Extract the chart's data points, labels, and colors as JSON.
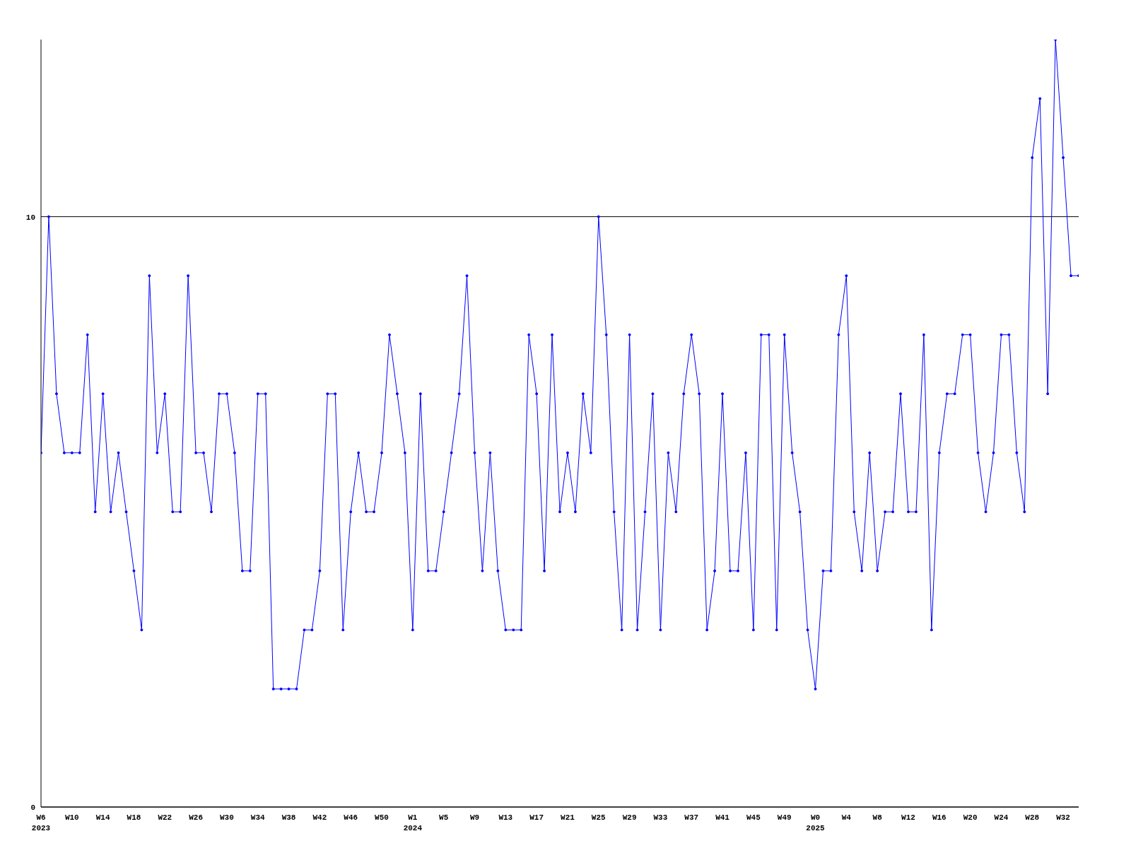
{
  "chart_data": {
    "type": "line",
    "categories": [
      "W6 2023",
      null,
      null,
      null,
      "W10",
      null,
      null,
      null,
      "W14",
      null,
      null,
      null,
      "W18",
      null,
      null,
      null,
      "W22",
      null,
      null,
      null,
      "W26",
      null,
      null,
      null,
      "W30",
      null,
      null,
      null,
      "W34",
      null,
      null,
      null,
      "W38",
      null,
      null,
      null,
      "W42",
      null,
      null,
      null,
      "W46",
      null,
      null,
      null,
      "W50",
      null,
      null,
      null,
      "W1 2024",
      null,
      null,
      null,
      "W5",
      null,
      null,
      null,
      "W9",
      null,
      null,
      null,
      "W13",
      null,
      null,
      null,
      "W17",
      null,
      null,
      null,
      "W21",
      null,
      null,
      null,
      "W25",
      null,
      null,
      null,
      "W29",
      null,
      null,
      null,
      "W33",
      null,
      null,
      null,
      "W37",
      null,
      null,
      null,
      "W41",
      null,
      null,
      null,
      "W45",
      null,
      null,
      null,
      "W49",
      null,
      null,
      null,
      "W0 2025",
      null,
      null,
      null,
      "W4",
      null,
      null,
      null,
      "W8",
      null,
      null,
      null,
      "W12",
      null,
      null,
      null,
      "W16",
      null,
      null,
      null,
      "W20",
      null,
      null,
      null,
      "W24",
      null,
      null,
      null,
      "W28",
      null,
      null,
      null,
      "W32",
      null,
      null
    ],
    "values": [
      6,
      10,
      7,
      6,
      6,
      6,
      8,
      5,
      7,
      5,
      6,
      5,
      4,
      3,
      9,
      6,
      7,
      5,
      5,
      9,
      6,
      6,
      5,
      7,
      7,
      6,
      4,
      4,
      7,
      7,
      2,
      2,
      2,
      2,
      3,
      3,
      4,
      7,
      7,
      3,
      5,
      6,
      5,
      5,
      6,
      8,
      7,
      6,
      3,
      7,
      4,
      4,
      5,
      6,
      7,
      9,
      6,
      4,
      6,
      4,
      3,
      3,
      3,
      8,
      7,
      4,
      8,
      5,
      6,
      5,
      7,
      6,
      10,
      8,
      5,
      3,
      8,
      3,
      5,
      7,
      3,
      6,
      5,
      7,
      8,
      7,
      3,
      4,
      7,
      4,
      4,
      6,
      3,
      8,
      8,
      3,
      8,
      6,
      5,
      3,
      2,
      4,
      4,
      8,
      9,
      5,
      4,
      6,
      4,
      5,
      5,
      7,
      5,
      5,
      8,
      3,
      6,
      7,
      7,
      8,
      8,
      6,
      5,
      6,
      8,
      8,
      6,
      5,
      11,
      12,
      7,
      13,
      11,
      9,
      9
    ],
    "color": "#0000ff",
    "ylim": [
      0,
      13
    ],
    "yticks": [
      0,
      10
    ],
    "grid": "y",
    "marker": "circle"
  }
}
